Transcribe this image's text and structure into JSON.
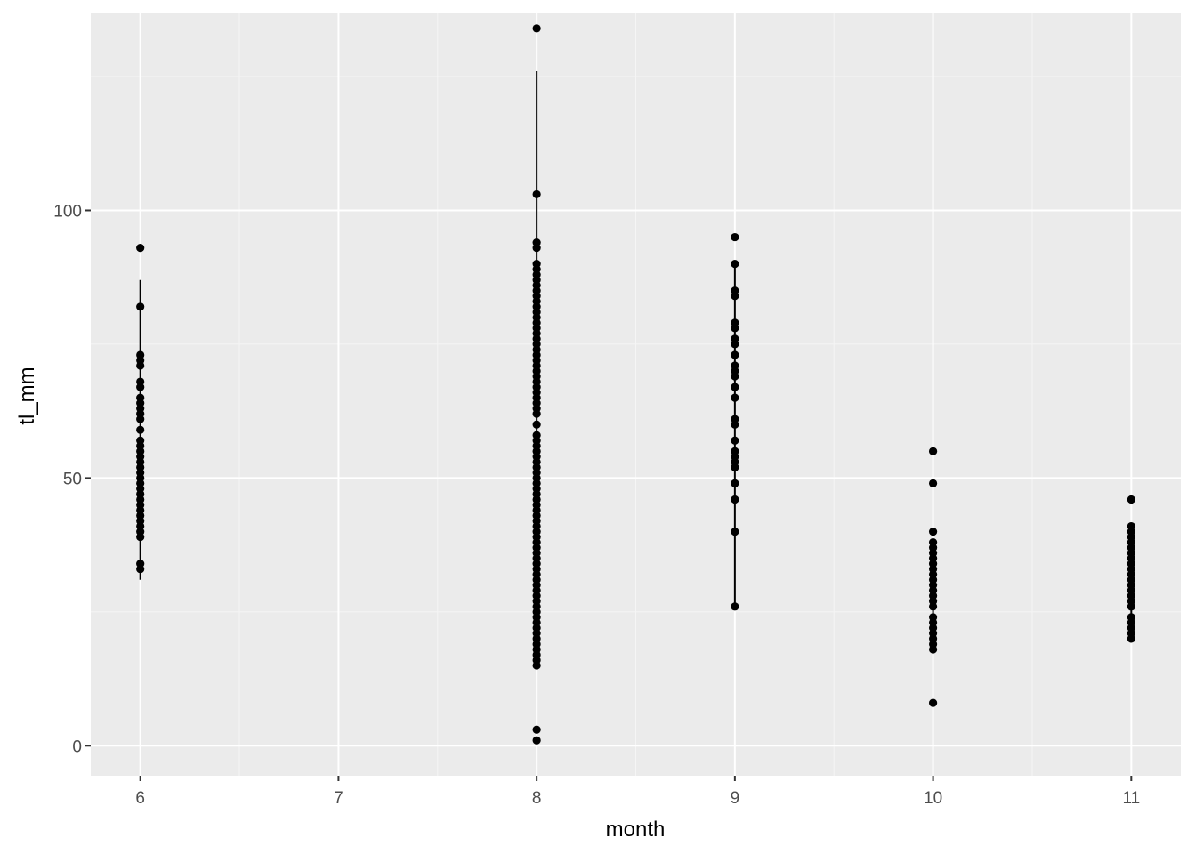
{
  "chart_data": {
    "type": "scatter",
    "title": "",
    "xlabel": "month",
    "ylabel": "tl_mm",
    "xlim": [
      5.75,
      11.25
    ],
    "ylim": [
      -5.6,
      136.8
    ],
    "x_ticks": [
      6,
      7,
      8,
      9,
      10,
      11
    ],
    "x_tick_labels": [
      "6",
      "7",
      "8",
      "9",
      "10",
      "11"
    ],
    "y_ticks": [
      0,
      50,
      100
    ],
    "y_tick_labels": [
      "0",
      "50",
      "100"
    ],
    "grid": true,
    "legend": "none",
    "colors": {
      "panel": "#ebebeb",
      "grid_major": "#ffffff",
      "grid_minor": "#f5f5f5",
      "points": "#000000",
      "tick_text": "#4d4d4d",
      "tick_marks": "#333333"
    },
    "ranges": [
      {
        "x": 6,
        "ymin": 31,
        "ymax": 87
      },
      {
        "x": 8,
        "ymin": 15,
        "ymax": 126
      },
      {
        "x": 9,
        "ymin": 26,
        "ymax": 90
      },
      {
        "x": 10,
        "ymin": 18,
        "ymax": 38
      },
      {
        "x": 11,
        "ymin": 20,
        "ymax": 41
      }
    ],
    "points": [
      {
        "x": 6,
        "y": [
          93,
          82,
          73,
          72,
          71,
          68,
          67,
          65,
          64,
          63,
          62,
          61,
          59,
          57,
          56,
          55,
          54,
          53,
          52,
          51,
          50,
          49,
          48,
          47,
          46,
          45,
          44,
          43,
          42,
          41,
          40,
          39,
          34,
          33
        ]
      },
      {
        "x": 8,
        "y": [
          134,
          103,
          94,
          93,
          90,
          89,
          88,
          87,
          86,
          85,
          84,
          83,
          82,
          81,
          80,
          79,
          78,
          77,
          76,
          75,
          74,
          73,
          72,
          71,
          70,
          69,
          68,
          67,
          66,
          65,
          64,
          63,
          62,
          60,
          58,
          57,
          56,
          55,
          54,
          53,
          52,
          51,
          50,
          49,
          48,
          47,
          46,
          45,
          44,
          43,
          42,
          41,
          40,
          39,
          38,
          37,
          36,
          35,
          34,
          33,
          32,
          31,
          30,
          29,
          28,
          27,
          26,
          25,
          24,
          23,
          22,
          21,
          20,
          19,
          18,
          17,
          16,
          15,
          3,
          1
        ]
      },
      {
        "x": 9,
        "y": [
          95,
          90,
          85,
          84,
          79,
          78,
          76,
          75,
          73,
          71,
          70,
          69,
          67,
          65,
          61,
          60,
          57,
          55,
          54,
          53,
          52,
          49,
          46,
          40,
          26
        ]
      },
      {
        "x": 10,
        "y": [
          55,
          49,
          40,
          38,
          37,
          36,
          35,
          34,
          33,
          32,
          31,
          30,
          29,
          28,
          27,
          26,
          24,
          23,
          22,
          21,
          20,
          19,
          18,
          8
        ]
      },
      {
        "x": 11,
        "y": [
          46,
          41,
          40,
          39,
          38,
          37,
          36,
          35,
          34,
          33,
          32,
          31,
          30,
          29,
          28,
          27,
          26,
          24,
          23,
          22,
          21,
          20
        ]
      }
    ]
  }
}
